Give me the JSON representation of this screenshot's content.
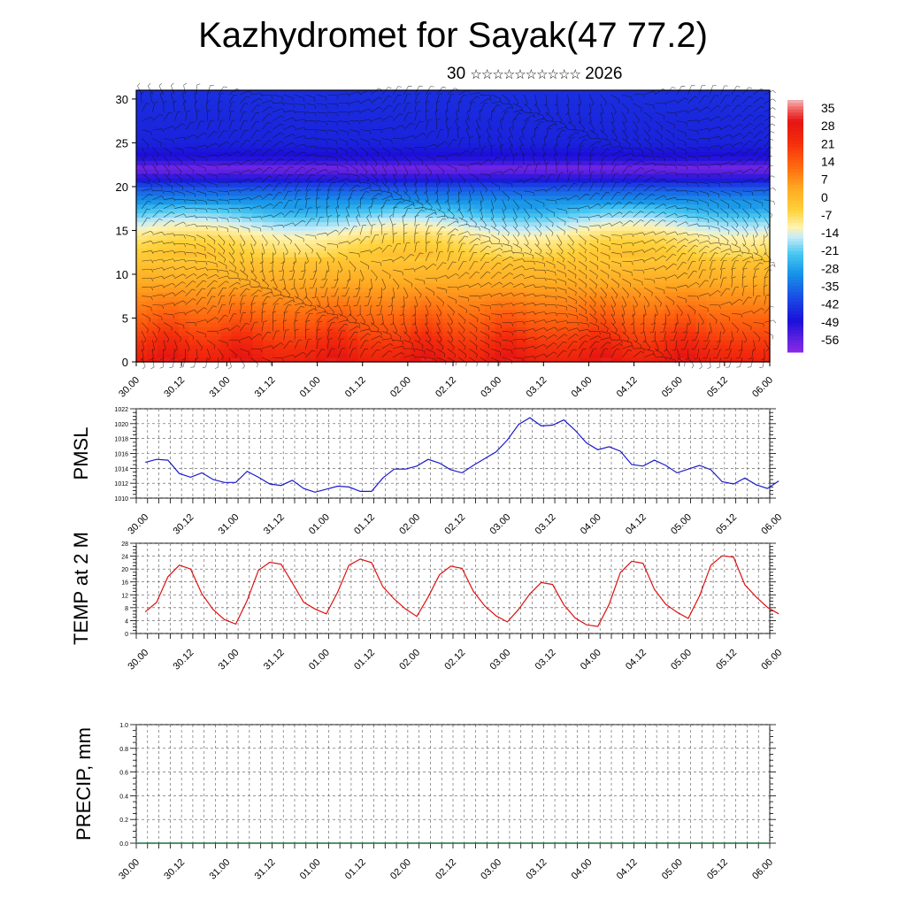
{
  "page": {
    "title": "Kazhydromet for Sayak(47 77.2)",
    "subtitle_day": "30",
    "subtitle_glyphs": "☆☆☆☆☆☆☆☆☆☆",
    "subtitle_year": "2026"
  },
  "x_tick_labels": [
    "30.00",
    "30.12",
    "31.00",
    "31.12",
    "01.00",
    "01.12",
    "02.00",
    "02.12",
    "03.00",
    "03.12",
    "04.00",
    "04.12",
    "05.00",
    "05.12",
    "06.00"
  ],
  "chart_data": [
    {
      "type": "heatmap",
      "name": "cross-section",
      "ylim": [
        0,
        31
      ],
      "yticks": [
        0,
        5,
        10,
        15,
        20,
        25,
        30
      ],
      "overlay": "wind barbs",
      "colorbar_labels": [
        "35",
        "28",
        "21",
        "14",
        "7",
        "0",
        "-7",
        "-14",
        "-21",
        "-28",
        "-35",
        "-42",
        "-49",
        "-56"
      ],
      "colorbar_range": [
        -63,
        42
      ],
      "colors": {
        "top": "#8a28e8",
        "band": "#1a10d8",
        "mid_cyan": "#2cc8ee",
        "pale": "#fff3b0",
        "orange": "#ff8a10",
        "hot": "#ee1208"
      },
      "temperature_profile": [
        {
          "y": 0,
          "t": 28
        },
        {
          "y": 3,
          "t": 20
        },
        {
          "y": 6,
          "t": 12
        },
        {
          "y": 9,
          "t": 5
        },
        {
          "y": 12,
          "t": -2
        },
        {
          "y": 14.5,
          "t": -9
        },
        {
          "y": 16,
          "t": -16
        },
        {
          "y": 18,
          "t": -28
        },
        {
          "y": 20,
          "t": -40
        },
        {
          "y": 21.5,
          "t": -56
        },
        {
          "y": 22.2,
          "t": -60
        },
        {
          "y": 23,
          "t": -52
        },
        {
          "y": 25,
          "t": -47
        },
        {
          "y": 31,
          "t": -45
        }
      ],
      "warm_pulses_x": [
        0.35,
        1.15,
        2.2,
        3.2,
        4.1,
        5.15,
        6.05
      ]
    },
    {
      "type": "line",
      "ylabel": "PMSL",
      "ylim": [
        1010,
        1022
      ],
      "yticks": [
        1010,
        1012,
        1014,
        1016,
        1018,
        1020,
        1022
      ],
      "color": "#1a1acc",
      "x_start": 0,
      "x_step": 0.125,
      "values": [
        1014.8,
        1015.2,
        1015.1,
        1013.3,
        1012.8,
        1013.4,
        1012.5,
        1012.1,
        1012.1,
        1013.6,
        1012.8,
        1011.9,
        1011.7,
        1012.4,
        1011.3,
        1010.8,
        1011.2,
        1011.6,
        1011.5,
        1010.9,
        1010.9,
        1012.7,
        1013.9,
        1013.9,
        1014.3,
        1015.2,
        1014.7,
        1013.8,
        1013.4,
        1014.4,
        1015.3,
        1016.2,
        1017.8,
        1019.9,
        1020.8,
        1019.7,
        1019.8,
        1020.5,
        1019.1,
        1017.4,
        1016.5,
        1016.9,
        1016.3,
        1014.5,
        1014.3,
        1015.1,
        1014.4,
        1013.4,
        1013.9,
        1014.4,
        1013.8,
        1012.2,
        1011.9,
        1012.7,
        1011.8,
        1011.3,
        1012.3
      ]
    },
    {
      "type": "line",
      "ylabel": "TEMP at 2 M",
      "ylim": [
        0,
        28
      ],
      "yticks": [
        0,
        4,
        8,
        12,
        16,
        20,
        24,
        28
      ],
      "color": "#dd1111",
      "x_start": 0,
      "x_step": 0.125,
      "values": [
        6.7,
        9.7,
        17.6,
        21.2,
        20.0,
        12.3,
        7.4,
        4.3,
        2.9,
        10.2,
        19.6,
        22.1,
        21.5,
        15.7,
        9.7,
        7.6,
        6.1,
        12.8,
        21.2,
        23.1,
        22.0,
        14.5,
        10.7,
        7.6,
        5.3,
        11.3,
        18.2,
        20.9,
        20.2,
        13.1,
        8.6,
        5.5,
        3.6,
        7.5,
        12.3,
        15.8,
        15.2,
        8.9,
        4.8,
        2.7,
        2.2,
        9.0,
        18.9,
        22.4,
        21.8,
        13.7,
        9.1,
        6.6,
        4.7,
        11.7,
        21.2,
        24.1,
        23.7,
        15.1,
        11.3,
        8.1,
        6.1
      ]
    },
    {
      "type": "bar",
      "ylabel": "PRECIP, mm",
      "ylim": [
        0,
        1.0
      ],
      "yticks": [
        0.0,
        0.2,
        0.4,
        0.6,
        0.8,
        1.0
      ],
      "ytick_labels": [
        "0.0",
        "0.2",
        "0.4",
        "0.6",
        "0.8",
        "1.0"
      ],
      "color": "#1a6e3a",
      "x_start": 0,
      "x_step": 0.125,
      "values": [
        0,
        0,
        0,
        0,
        0,
        0,
        0,
        0,
        0,
        0,
        0,
        0,
        0,
        0,
        0,
        0,
        0,
        0,
        0,
        0,
        0,
        0,
        0,
        0,
        0,
        0,
        0,
        0,
        0,
        0,
        0,
        0,
        0,
        0,
        0,
        0,
        0,
        0,
        0,
        0,
        0,
        0,
        0,
        0,
        0,
        0,
        0,
        0,
        0,
        0,
        0,
        0,
        0,
        0,
        0,
        0,
        0
      ]
    }
  ]
}
